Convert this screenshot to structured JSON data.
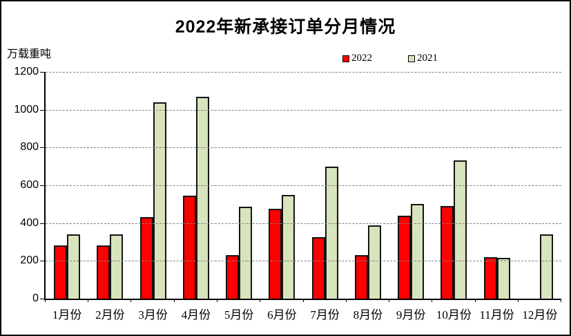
{
  "chart_data": {
    "type": "bar",
    "title": "2022年新承接订单分月情况",
    "ylabel": "万载重吨",
    "xlabel": "",
    "categories": [
      "1月份",
      "2月份",
      "3月份",
      "4月份",
      "5月份",
      "6月份",
      "7月份",
      "8月份",
      "9月份",
      "10月份",
      "11月份",
      "12月份"
    ],
    "series": [
      {
        "name": "2022",
        "color": "#fe0000",
        "values": [
          283,
          282,
          430,
          546,
          229,
          476,
          326,
          232,
          440,
          492,
          219,
          0
        ]
      },
      {
        "name": "2021",
        "color": "#d8e4bc",
        "values": [
          340,
          342,
          1038,
          1068,
          488,
          549,
          699,
          388,
          502,
          732,
          216,
          341
        ]
      }
    ],
    "ylim": [
      0,
      1200
    ],
    "ytick_step": 200,
    "yticks": [
      0,
      200,
      400,
      600,
      800,
      1000,
      1200
    ],
    "grid": "horizontal-dashed",
    "legend_position": "top-center",
    "colors": {
      "axis": "#000000",
      "gridline": "#7f7f7f",
      "bar_outline": "#141414",
      "background": "#ffffff"
    }
  }
}
